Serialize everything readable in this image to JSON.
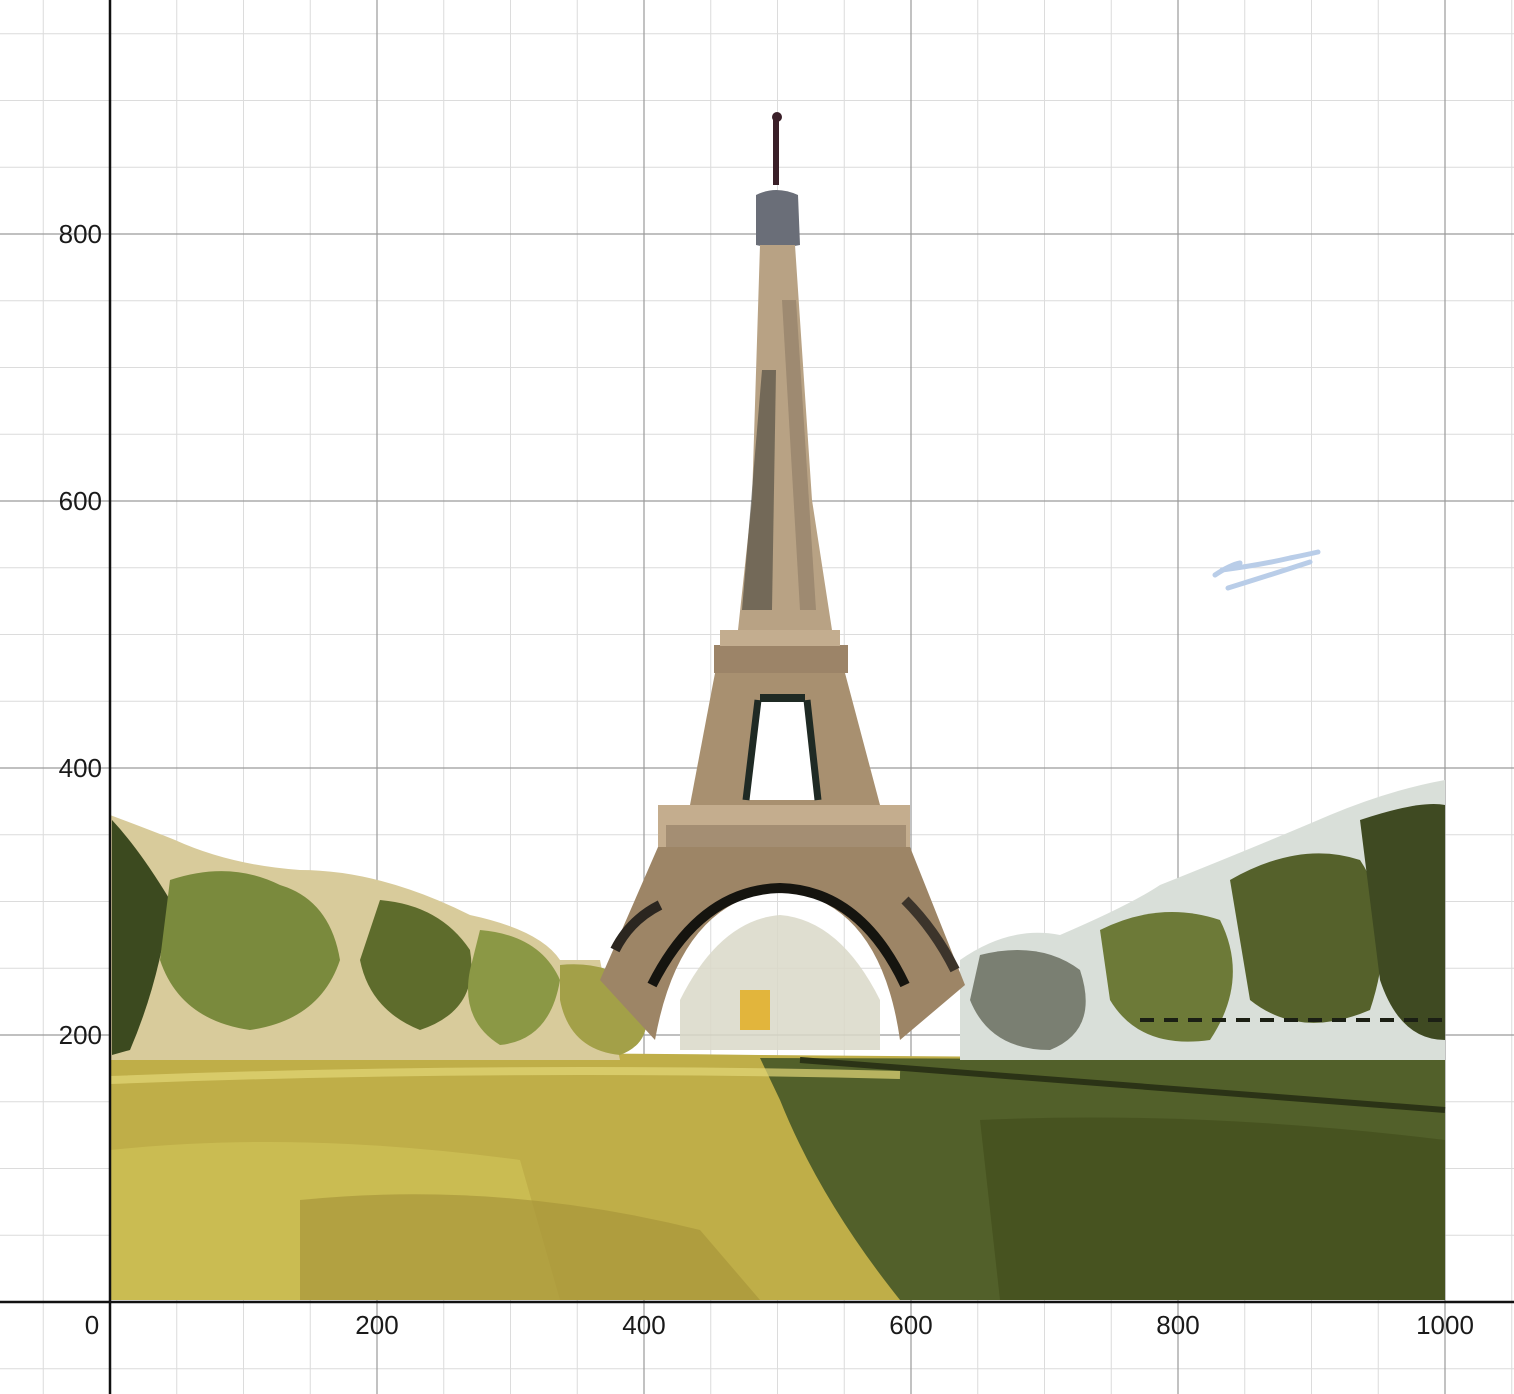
{
  "chart_data": {
    "type": "scatter",
    "title": "",
    "xlabel": "",
    "ylabel": "",
    "xlim": [
      -82,
      1000
    ],
    "ylim": [
      -70,
      975
    ],
    "grid": true,
    "origin_label": "0",
    "x_ticks": [
      "200",
      "400",
      "600",
      "800",
      "1000"
    ],
    "y_ticks": [
      "200",
      "400",
      "600",
      "800"
    ],
    "x_tick_values": [
      200,
      400,
      600,
      800,
      1000
    ],
    "y_tick_values": [
      200,
      400,
      600,
      800
    ],
    "series": []
  },
  "colors": {
    "background": "#ffffff",
    "major_grid": "#9a9a9a",
    "minor_grid": "#dcdcdc",
    "axis": "#111111",
    "grass_light": "#cbbd4d",
    "grass_dark": "#4e5a22",
    "tower": "#b9a183",
    "tower_dark": "#2c2a26",
    "trees": "#66743a",
    "sky_stroke": "#b9cde8"
  },
  "drawing": {
    "subject": "eiffel-tower-park-scene"
  }
}
